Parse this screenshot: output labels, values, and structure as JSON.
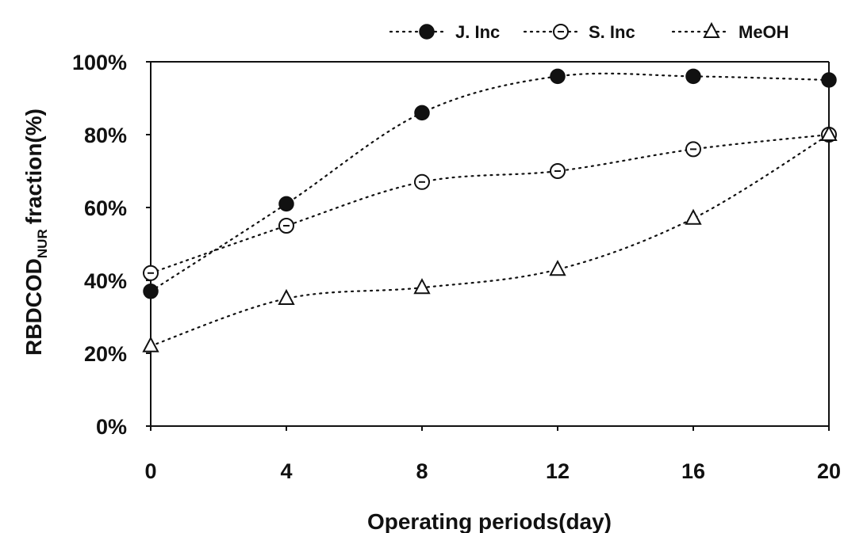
{
  "chart_data": {
    "type": "line",
    "xlabel": "Operating periods(day)",
    "ylabel": {
      "main": "RBDCOD",
      "subscript": "NUR",
      "suffix": "fraction(%)"
    },
    "x": [
      0,
      4,
      8,
      12,
      16,
      20
    ],
    "xlim": [
      0,
      20
    ],
    "ylim": [
      0,
      100
    ],
    "y_ticks": [
      "0%",
      "20%",
      "40%",
      "60%",
      "80%",
      "100%"
    ],
    "x_ticks": [
      "0",
      "4",
      "8",
      "12",
      "16",
      "20"
    ],
    "grid": false,
    "legend_position": "top",
    "series": [
      {
        "name": "J. Inc",
        "marker": "filled-circle",
        "values": [
          37,
          61,
          86,
          96,
          96,
          95
        ]
      },
      {
        "name": "S. Inc",
        "marker": "open-circle",
        "values": [
          42,
          55,
          67,
          70,
          76,
          80
        ]
      },
      {
        "name": "MeOH",
        "marker": "open-triangle",
        "values": [
          22,
          35,
          38,
          43,
          57,
          80
        ]
      }
    ]
  }
}
